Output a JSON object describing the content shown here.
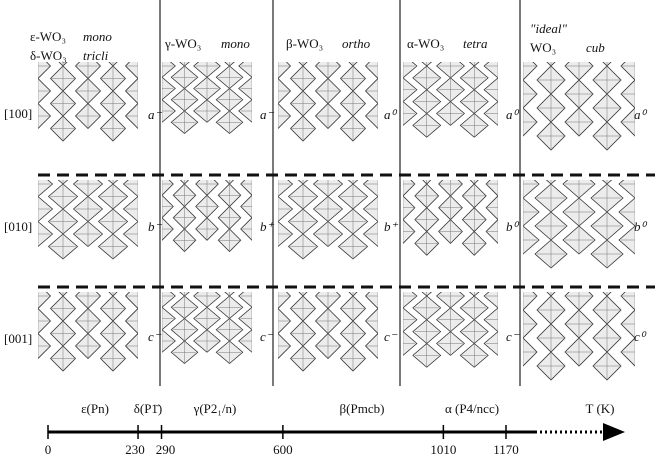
{
  "columns": [
    {
      "headers": [
        {
          "name": "ε-WO₃",
          "system": "mono"
        },
        {
          "name": "δ-WO₃",
          "system": "tricli"
        }
      ],
      "tilts": [
        "a⁻",
        "b⁻",
        "c⁻"
      ]
    },
    {
      "headers": [
        {
          "name": "γ-WO₃",
          "system": "mono"
        }
      ],
      "tilts": [
        "a⁻",
        "b⁺",
        "c⁻"
      ]
    },
    {
      "headers": [
        {
          "name": "β-WO₃",
          "system": "ortho"
        }
      ],
      "tilts": [
        "a⁰",
        "b⁺",
        "c⁻"
      ]
    },
    {
      "headers": [
        {
          "name": "α-WO₃",
          "system": "tetra"
        }
      ],
      "tilts": [
        "a⁰",
        "b⁰",
        "c⁻"
      ]
    },
    {
      "headers": [
        {
          "name": "\"ideal\""
        },
        {
          "name": "WO₃",
          "system": "cub"
        }
      ],
      "tilts": [
        "a⁰",
        "b⁰",
        "c⁰"
      ]
    }
  ],
  "row_labels": [
    "[100]",
    "[010]",
    "[001]"
  ],
  "temperature_axis": {
    "ticks": [
      0,
      230,
      290,
      600,
      1010,
      1170
    ],
    "phases": [
      "ε(Pn)",
      "δ(P1̄)",
      "γ(P2₁/n)",
      "β(Pmcb)",
      "α (P4/ncc)"
    ],
    "unit_label": "T (K)"
  }
}
